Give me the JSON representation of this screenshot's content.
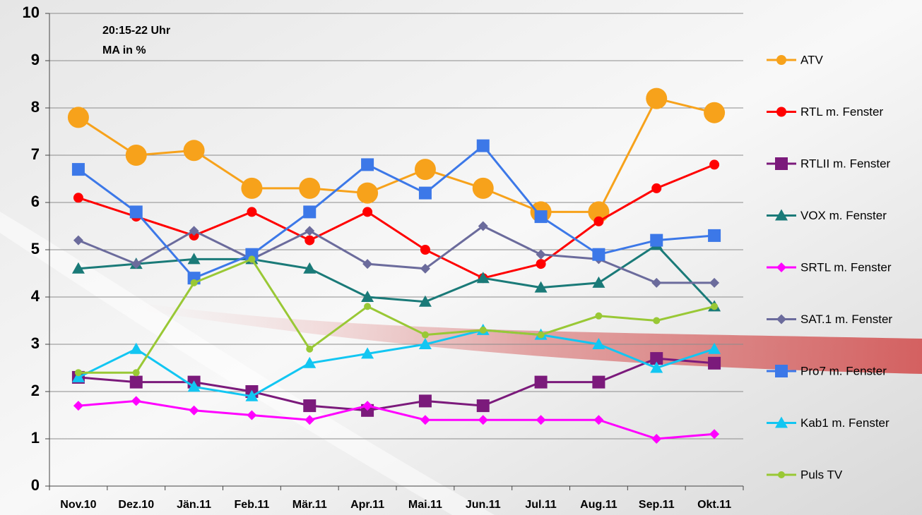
{
  "chart_data": {
    "type": "line",
    "annotations": [
      "20:15-22 Uhr",
      "MA in %"
    ],
    "categories": [
      "Nov.10",
      "Dez.10",
      "Jän.11",
      "Feb.11",
      "Mär.11",
      "Apr.11",
      "Mai.11",
      "Jun.11",
      "Jul.11",
      "Aug.11",
      "Sep.11",
      "Okt.11"
    ],
    "series": [
      {
        "name": "ATV",
        "color": "#f7a21b",
        "marker": "big-circle",
        "values": [
          7.8,
          7.0,
          7.1,
          6.3,
          6.3,
          6.2,
          6.7,
          6.3,
          5.8,
          5.8,
          8.2,
          7.9
        ]
      },
      {
        "name": "RTL m. Fenster",
        "color": "#ff0000",
        "marker": "circle",
        "values": [
          6.1,
          5.7,
          5.3,
          5.8,
          5.2,
          5.8,
          5.0,
          4.4,
          4.7,
          5.6,
          6.3,
          6.8
        ]
      },
      {
        "name": "RTLII m. Fenster",
        "color": "#7b1a7b",
        "marker": "square",
        "values": [
          2.3,
          2.2,
          2.2,
          2.0,
          1.7,
          1.6,
          1.8,
          1.7,
          2.2,
          2.2,
          2.7,
          2.6
        ]
      },
      {
        "name": "VOX m. Fenster",
        "color": "#1a7a78",
        "marker": "triangle",
        "values": [
          4.6,
          4.7,
          4.8,
          4.8,
          4.6,
          4.0,
          3.9,
          4.4,
          4.2,
          4.3,
          5.1,
          3.8
        ]
      },
      {
        "name": "SRTL m. Fenster",
        "color": "#ff00ff",
        "marker": "diamond",
        "values": [
          1.7,
          1.8,
          1.6,
          1.5,
          1.4,
          1.7,
          1.4,
          1.4,
          1.4,
          1.4,
          1.0,
          1.1
        ]
      },
      {
        "name": "SAT.1 m. Fenster",
        "color": "#6b6b9c",
        "marker": "diamond",
        "values": [
          5.2,
          4.7,
          5.4,
          4.8,
          5.4,
          4.7,
          4.6,
          5.5,
          4.9,
          4.8,
          4.3,
          4.3
        ]
      },
      {
        "name": "Pro7 m. Fenster",
        "color": "#3c78e8",
        "marker": "square",
        "values": [
          6.7,
          5.8,
          4.4,
          4.9,
          5.8,
          6.8,
          6.2,
          7.2,
          5.7,
          4.9,
          5.2,
          5.3
        ]
      },
      {
        "name": "Kab1 m. Fenster",
        "color": "#12c6f2",
        "marker": "triangle",
        "values": [
          2.3,
          2.9,
          2.1,
          1.9,
          2.6,
          2.8,
          3.0,
          3.3,
          3.2,
          3.0,
          2.5,
          2.9
        ]
      },
      {
        "name": "Puls TV",
        "color": "#99c835",
        "marker": "small-circle",
        "values": [
          2.4,
          2.4,
          4.3,
          4.8,
          2.9,
          3.8,
          3.2,
          3.3,
          3.2,
          3.6,
          3.5,
          3.8
        ]
      }
    ],
    "ylim": [
      0,
      10
    ],
    "yticks": [
      0,
      1,
      2,
      3,
      4,
      5,
      6,
      7,
      8,
      9,
      10
    ],
    "grid": true,
    "legend": "right"
  }
}
